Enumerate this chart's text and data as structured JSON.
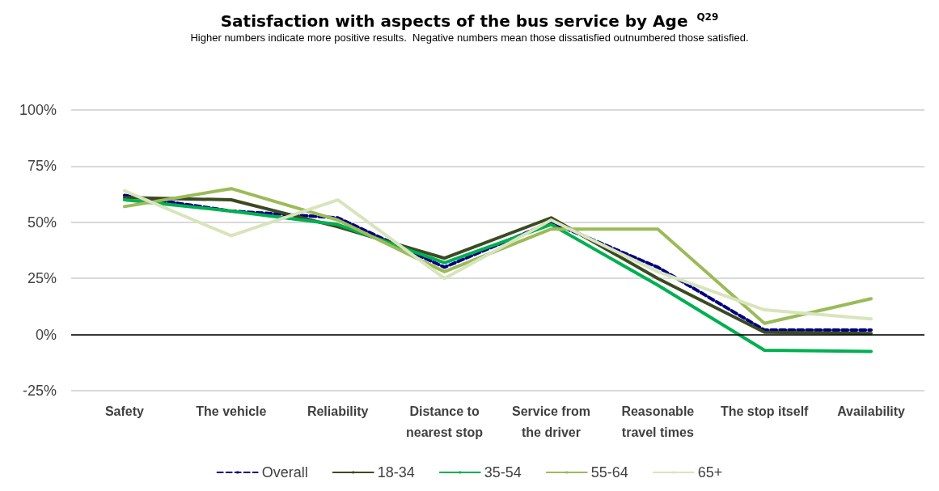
{
  "chart_data": {
    "type": "line",
    "title": "Satisfaction with aspects of the bus service by Age $^{Q29}$",
    "subtitle": "Higher numbers indicate more positive results.  Negative numbers mean those dissatisfied outnumbered those satisfied.",
    "categories": [
      "Safety",
      "The vehicle",
      "Reliability",
      "Distance to\nnearest stop",
      "Service from\nthe driver",
      "Reasonable\ntravel times",
      "The stop itself",
      "Availability"
    ],
    "series": [
      {
        "name": "Overall",
        "color": "#000080",
        "line_style": "dashed",
        "values": [
          62,
          55,
          52,
          30,
          50,
          30,
          2,
          2
        ]
      },
      {
        "name": "18-34",
        "color": "#3b4a22",
        "values": [
          61,
          60,
          48,
          34,
          52,
          25,
          1,
          0.5
        ]
      },
      {
        "name": "35-54",
        "color": "#00b050",
        "values": [
          60,
          55,
          49,
          32,
          49,
          22,
          -7,
          -7.5
        ]
      },
      {
        "name": "55-64",
        "color": "#9bbb59",
        "values": [
          57,
          65,
          51,
          28,
          47,
          47,
          5,
          16
        ]
      },
      {
        "name": "65+",
        "color": "#d8e4bc",
        "values": [
          64,
          44,
          60,
          25,
          51,
          28,
          11,
          7
        ]
      }
    ],
    "ylim": [
      -25,
      100
    ],
    "yticks": [
      {
        "value": -25,
        "label": "-25%"
      },
      {
        "value": 0,
        "label": "0%"
      },
      {
        "value": 25,
        "label": "25%"
      },
      {
        "value": 50,
        "label": "50%"
      },
      {
        "value": 75,
        "label": "75%"
      },
      {
        "value": 100,
        "label": "100%"
      }
    ],
    "grid": "y",
    "legend": "bottom",
    "marker": "none",
    "line_style": "solid"
  }
}
